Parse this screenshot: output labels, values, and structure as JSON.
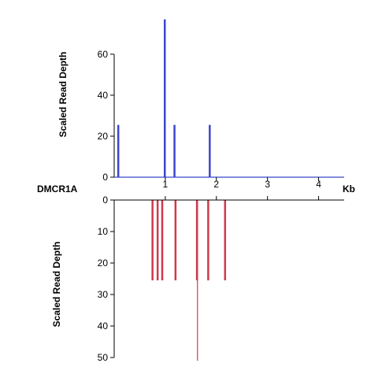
{
  "chart_data": [
    {
      "type": "bar",
      "panel": "top",
      "ylabel": "Scaled Read Depth",
      "ylim": [
        0,
        78
      ],
      "yticks": [
        0,
        20,
        40,
        60
      ],
      "color": "#3b46cc",
      "x": [
        0.08,
        0.99,
        1.18,
        1.87
      ],
      "values": [
        25.5,
        77,
        25.5,
        25.5
      ]
    },
    {
      "type": "bar",
      "panel": "bottom",
      "ylabel": "Scaled Read Depth",
      "ylim": [
        0,
        51
      ],
      "yticks": [
        0,
        10,
        20,
        30,
        40,
        50
      ],
      "inverted": true,
      "color": "#cc3a4b",
      "x": [
        0.75,
        0.85,
        0.94,
        1.2,
        1.62,
        1.63,
        1.84,
        2.17
      ],
      "values": [
        25.5,
        25.5,
        25.5,
        25.5,
        25.5,
        51,
        25.5,
        25.5
      ]
    }
  ],
  "axis": {
    "gene_label": "DMCR1A",
    "unit": "Kb",
    "xlim": [
      0,
      4.5
    ],
    "xticks": [
      1,
      2,
      3,
      4
    ]
  }
}
